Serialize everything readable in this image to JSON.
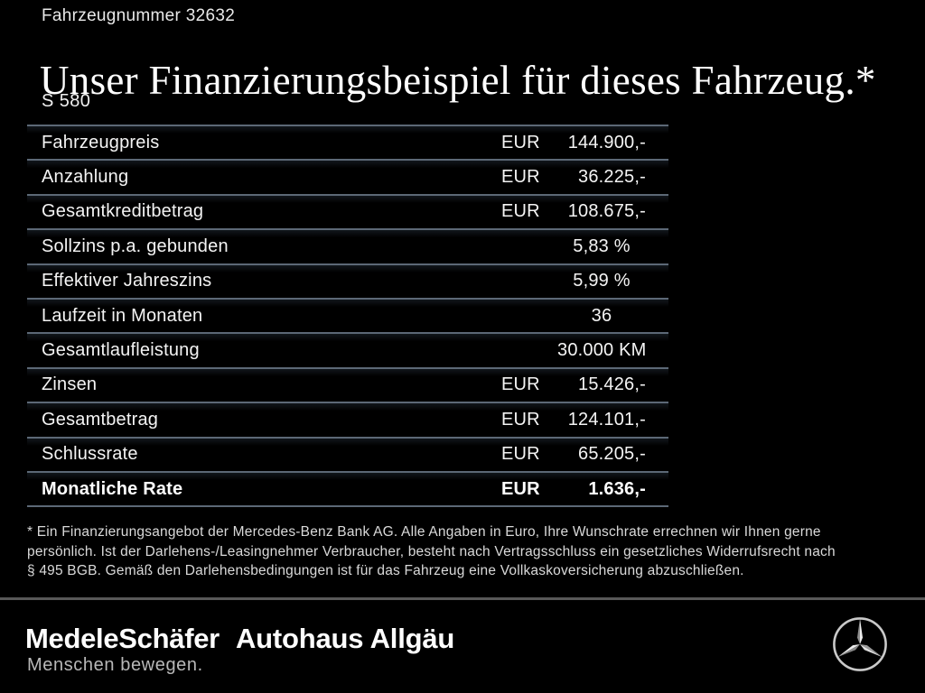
{
  "page": {
    "background": "#000000",
    "accent_separator": "#5c6876",
    "footer_divider": "#585858"
  },
  "header": {
    "vehicle_number": "Fahrzeugnummer 32632",
    "title": "Unser Finanzierungsbeispiel für dieses Fahrzeug.*",
    "model": "S 580"
  },
  "finance_table": {
    "rows": [
      {
        "label": "Fahrzeugpreis",
        "currency": "EUR",
        "value": "144.900,-",
        "align": "right",
        "bold": false
      },
      {
        "label": "Anzahlung",
        "currency": "EUR",
        "value": "36.225,-",
        "align": "right",
        "bold": false
      },
      {
        "label": "Gesamtkreditbetrag",
        "currency": "EUR",
        "value": "108.675,-",
        "align": "right",
        "bold": false
      },
      {
        "label": "Sollzins p.a. gebunden",
        "currency": "",
        "value": "5,83 %",
        "align": "center",
        "bold": false
      },
      {
        "label": "Effektiver Jahreszins",
        "currency": "",
        "value": "5,99 %",
        "align": "center",
        "bold": false
      },
      {
        "label": "Laufzeit in Monaten",
        "currency": "",
        "value": "36",
        "align": "center",
        "bold": false
      },
      {
        "label": "Gesamtlaufleistung",
        "currency": "",
        "value": "30.000 KM",
        "align": "right",
        "bold": false
      },
      {
        "label": "Zinsen",
        "currency": "EUR",
        "value": "15.426,-",
        "align": "right",
        "bold": false
      },
      {
        "label": "Gesamtbetrag",
        "currency": "EUR",
        "value": "124.101,-",
        "align": "right",
        "bold": false
      },
      {
        "label": "Schlussrate",
        "currency": "EUR",
        "value": "65.205,-",
        "align": "right",
        "bold": false
      },
      {
        "label": "Monatliche Rate",
        "currency": "EUR",
        "value": "1.636,-",
        "align": "right",
        "bold": true
      }
    ]
  },
  "footnote": {
    "lines": [
      "* Ein Finanzierungsangebot der Mercedes-Benz Bank AG. Alle Angaben in Euro, Ihre Wunschrate errechnen wir Ihnen gerne",
      "persönlich. Ist der Darlehens-/Leasingnehmer Verbraucher, besteht nach Vertragsschluss ein gesetzliches Widerrufsrecht nach",
      "§ 495 BGB. Gemäß den Darlehensbedingungen ist für das Fahrzeug eine Vollkaskoversicherung abzuschließen."
    ]
  },
  "footer": {
    "dealer_logo": "MedeleSchäfer",
    "dealer_tagline": "Menschen bewegen.",
    "dealer_secondary": "Autohaus Allgäu",
    "brand_icon": "mercedes-star-icon",
    "star_color": "#cccccc"
  }
}
